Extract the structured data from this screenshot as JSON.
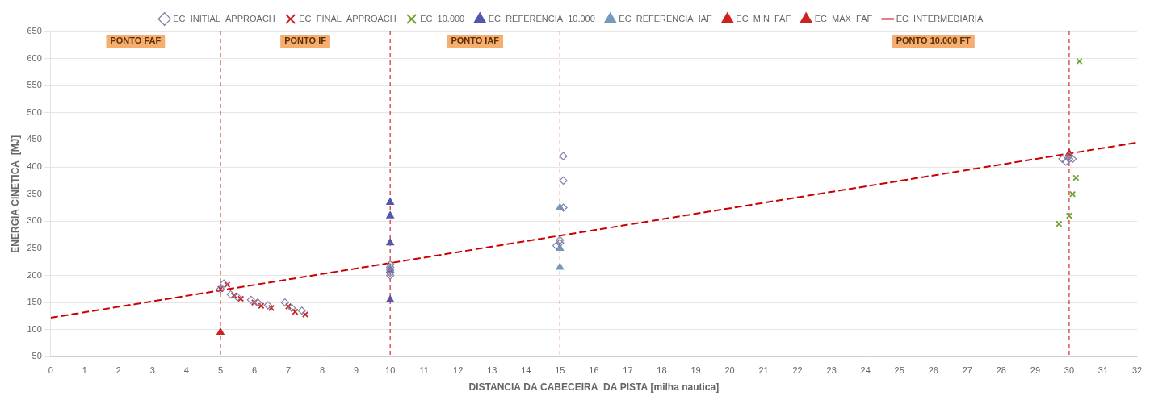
{
  "chart_data": {
    "type": "scatter",
    "xlabel": "DISTANCIA DA CABECEIRA  DA PISTA [milha nautica]",
    "ylabel": "ENERGIA CINETICA  [MJ]",
    "xlim": [
      0,
      32
    ],
    "ylim": [
      50,
      650
    ],
    "xticks": [
      0,
      1,
      2,
      3,
      4,
      5,
      6,
      7,
      8,
      9,
      10,
      11,
      12,
      13,
      14,
      15,
      16,
      17,
      18,
      19,
      20,
      21,
      22,
      23,
      24,
      25,
      26,
      27,
      28,
      29,
      30,
      31,
      32
    ],
    "yticks": [
      50,
      100,
      150,
      200,
      250,
      300,
      350,
      400,
      450,
      500,
      550,
      600,
      650
    ],
    "grid": "y",
    "legend": "top",
    "vlines": {
      "x": [
        5,
        10,
        15,
        30
      ],
      "color": "#cc0000",
      "line_style": "dashed"
    },
    "annotations": [
      {
        "text": "PONTO FAF",
        "x_range": [
          0,
          5
        ]
      },
      {
        "text": "PONTO IF",
        "x_range": [
          5,
          10
        ]
      },
      {
        "text": "PONTO IAF",
        "x_range": [
          10,
          15
        ]
      },
      {
        "text": "PONTO 10.000 FT",
        "x_range": [
          22,
          30
        ]
      }
    ],
    "series": [
      {
        "name": "EC_INITIAL_APPROACH",
        "color": "#8080a8",
        "marker": "diamond",
        "x": [
          5.0,
          5.1,
          5.3,
          5.5,
          5.9,
          6.1,
          6.4,
          6.9,
          7.1,
          7.4,
          10.0,
          10.0,
          10.0,
          10.0,
          10.0,
          14.9,
          15.0,
          15.0,
          15.1,
          15.1,
          15.1,
          29.8,
          29.9,
          30.0,
          30.0,
          30.1
        ],
        "values": [
          175,
          185,
          165,
          160,
          155,
          150,
          145,
          150,
          140,
          135,
          200,
          210,
          220,
          215,
          205,
          255,
          265,
          260,
          325,
          375,
          420,
          415,
          410,
          415,
          420,
          415
        ]
      },
      {
        "name": "EC_FINAL_APPROACH",
        "color": "#cc2222",
        "marker": "cross",
        "x": [
          5.0,
          5.2,
          5.4,
          5.6,
          6.0,
          6.2,
          6.5,
          7.0,
          7.2,
          7.5
        ],
        "values": [
          175,
          183,
          163,
          157,
          150,
          144,
          140,
          143,
          133,
          128
        ]
      },
      {
        "name": "EC_10.000",
        "color": "#70a030",
        "marker": "cross",
        "x": [
          29.7,
          30.0,
          30.1,
          30.2,
          30.3
        ],
        "values": [
          295,
          310,
          350,
          380,
          595
        ]
      },
      {
        "name": "EC_REFERENCIA_10.000",
        "color": "#5555aa",
        "marker": "triangle",
        "x": [
          10.0,
          10.0,
          10.0,
          10.0,
          10.0
        ],
        "values": [
          155,
          210,
          260,
          310,
          335
        ]
      },
      {
        "name": "EC_REFERENCIA_IAF",
        "color": "#7799bb",
        "marker": "triangle",
        "x": [
          15.0,
          15.0,
          15.0
        ],
        "values": [
          215,
          250,
          325
        ]
      },
      {
        "name": "EC_MIN_FAF",
        "color": "#cc2222",
        "marker": "triangle",
        "x": [
          5.0
        ],
        "values": [
          95
        ]
      },
      {
        "name": "EC_MAX_FAF",
        "color": "#cc2222",
        "marker": "triangle",
        "x": [
          30.0
        ],
        "values": [
          425
        ]
      },
      {
        "name": "EC_INTERMEDIARIA",
        "type": "line",
        "color": "#cc0000",
        "line_style": "dashed",
        "x": [
          0,
          32
        ],
        "values": [
          122,
          445
        ]
      }
    ]
  }
}
